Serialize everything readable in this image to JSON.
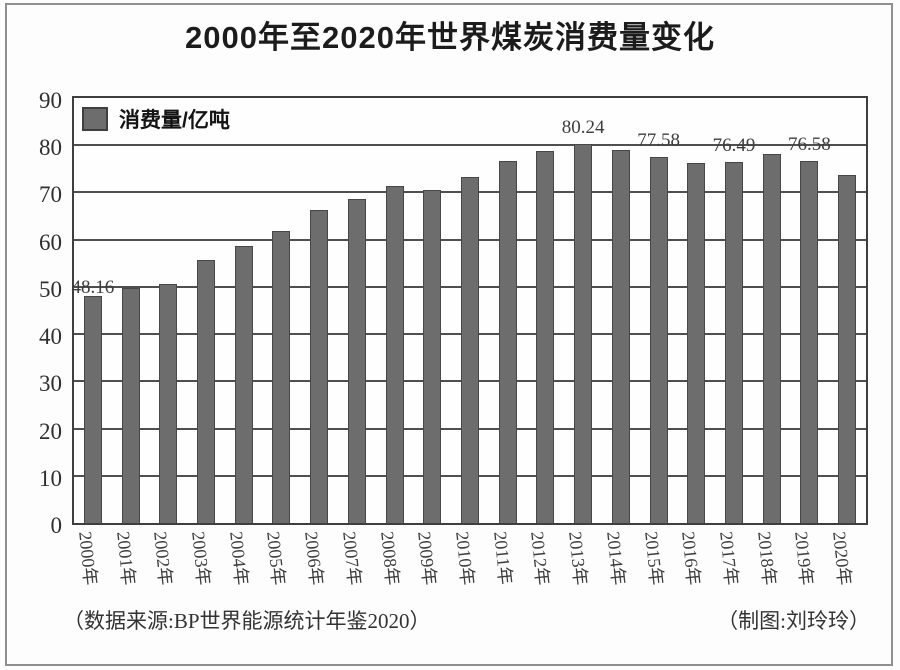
{
  "title": "2000年至2020年世界煤炭消费量变化",
  "legend": {
    "label": "消费量/亿吨",
    "swatch": "bar-swatch"
  },
  "footer": {
    "source": "（数据来源:BP世界能源统计年鉴2020）",
    "credit": "（制图:刘玲玲）"
  },
  "colors": {
    "bar_fill": "#6d6d6d",
    "bar_edge": "#474747",
    "grid_line": "#4f4f4f",
    "plot_border": "#3f3f3f",
    "frame_border": "#8f8f8f",
    "title_text": "#1c1c1c",
    "label_text": "#3d3d3d"
  },
  "chart_data": {
    "type": "bar",
    "title": "2000年至2020年世界煤炭消费量变化",
    "ylabel": "消费量/亿吨",
    "unit": "亿吨",
    "xlabel": "",
    "ylim": [
      0,
      90
    ],
    "yticks": [
      90,
      80,
      70,
      60,
      50,
      40,
      30,
      20,
      10,
      0
    ],
    "grid": "horizontal",
    "legend_position": "top-left-inside",
    "categories": [
      "2000年",
      "2001年",
      "2002年",
      "2003年",
      "2004年",
      "2005年",
      "2006年",
      "2007年",
      "2008年",
      "2009年",
      "2010年",
      "2011年",
      "2012年",
      "2013年",
      "2014年",
      "2015年",
      "2016年",
      "2017年",
      "2018年",
      "2019年",
      "2020年"
    ],
    "values": [
      48.16,
      49.8,
      50.7,
      55.7,
      58.6,
      61.8,
      66.3,
      68.6,
      71.3,
      70.5,
      73.3,
      76.6,
      78.8,
      80.24,
      78.9,
      77.58,
      76.2,
      76.49,
      78.1,
      76.58,
      73.6
    ],
    "value_labels": [
      {
        "index": 0,
        "text": "48.16"
      },
      {
        "index": 13,
        "text": "80.24"
      },
      {
        "index": 15,
        "text": "77.58"
      },
      {
        "index": 17,
        "text": "76.49"
      },
      {
        "index": 19,
        "text": "76.58"
      }
    ]
  }
}
